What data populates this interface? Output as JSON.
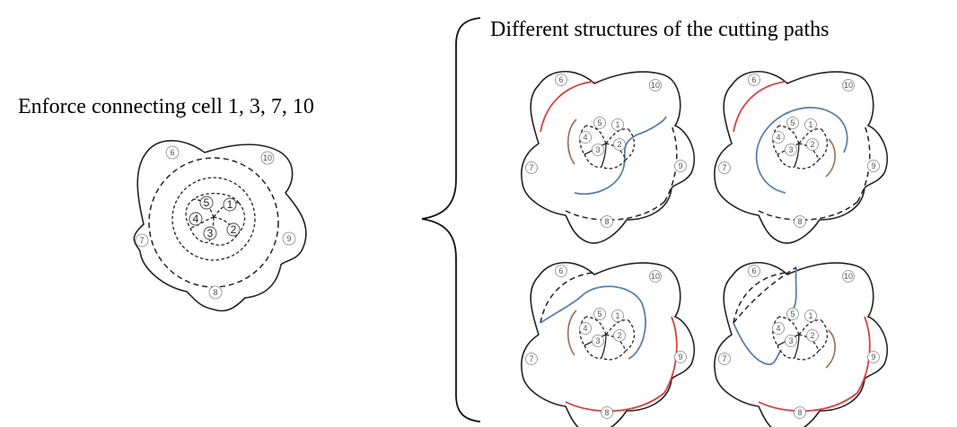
{
  "left_title": "Enforce connecting cell 1, 3, 7, 10",
  "right_title": "Different structures of the cutting paths",
  "cell_labels": {
    "c1": "1",
    "c2": "2",
    "c3": "3",
    "c4": "4",
    "c5": "5",
    "c6": "6",
    "c7": "7",
    "c8": "8",
    "c9": "9",
    "c10": "10"
  },
  "colors": {
    "cut_red": "#d8413f",
    "cut_blue": "#5a7fb0",
    "cut_brown": "#9a6b5c",
    "outline": "#222222"
  }
}
